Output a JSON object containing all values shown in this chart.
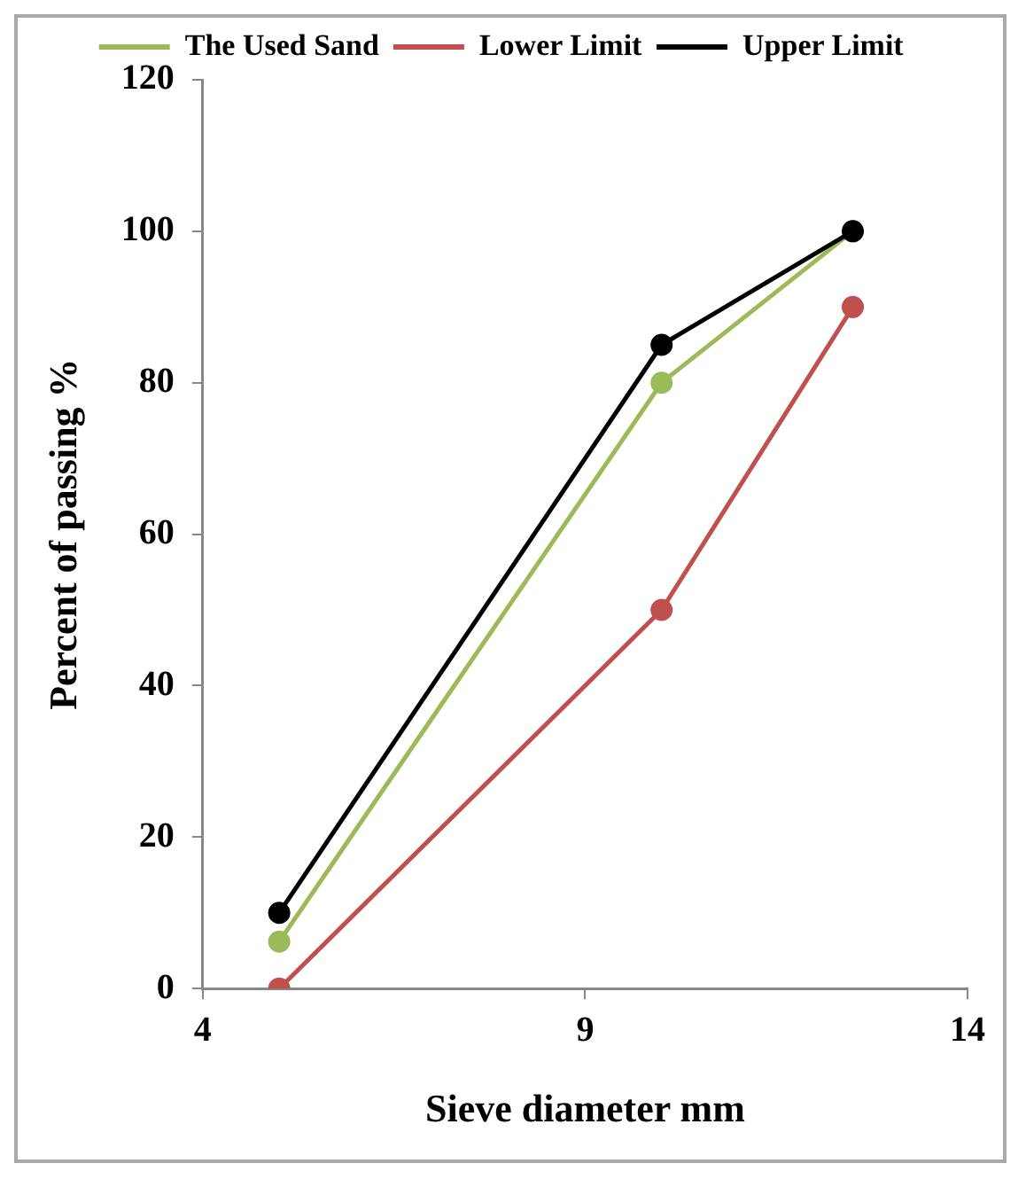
{
  "chart_data": {
    "type": "line",
    "xlabel": "Sieve diameter mm",
    "ylabel": "Percent of passing %",
    "x": [
      5,
      10,
      12.5
    ],
    "series": [
      {
        "name": "The Used Sand",
        "color": "#9bbb59",
        "values": [
          6.2,
          80,
          100
        ]
      },
      {
        "name": "Lower Limit",
        "color": "#c0504d",
        "values": [
          0,
          50,
          90
        ]
      },
      {
        "name": "Upper Limit",
        "color": "#000000",
        "values": [
          10,
          85,
          100
        ]
      }
    ],
    "xlim": [
      4,
      14
    ],
    "xticks": [
      4,
      9,
      14
    ],
    "ylim": [
      0,
      120
    ],
    "yticks": [
      0,
      20,
      40,
      60,
      80,
      100,
      120
    ],
    "grid": false,
    "legend": "top",
    "marker": "circle",
    "line_style": "solid"
  }
}
